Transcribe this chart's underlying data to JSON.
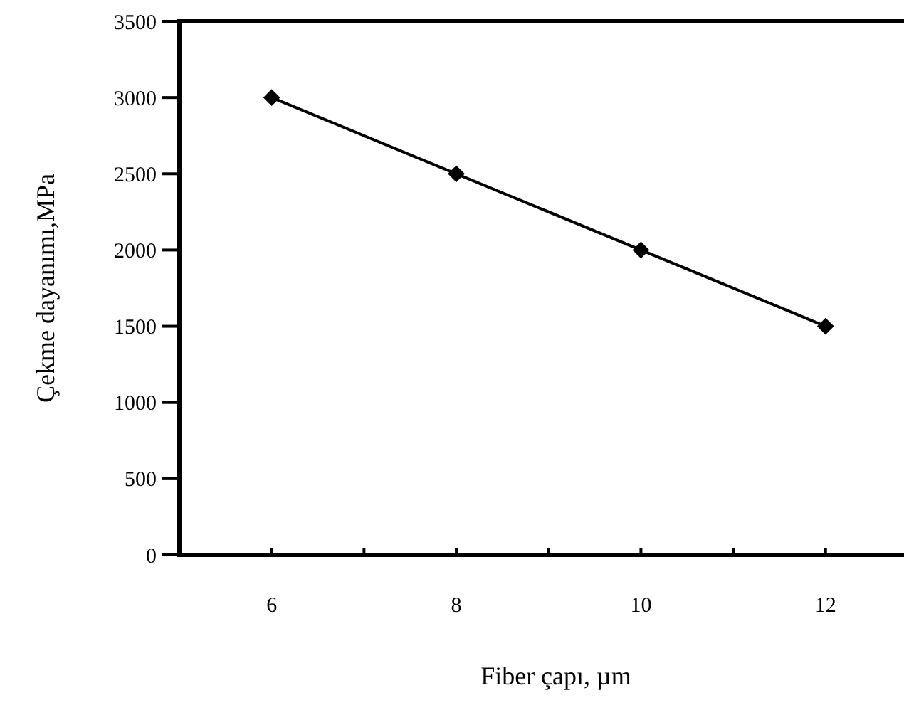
{
  "chart_data": {
    "type": "line",
    "xlabel": "Fiber çapı, µm",
    "ylabel": "Çekme dayanımı,MPa",
    "x": [
      6,
      8,
      10,
      12
    ],
    "series": [
      {
        "color": "#000000",
        "values": [
          3000,
          2500,
          2000,
          1500
        ]
      }
    ],
    "xlim": [
      5,
      13
    ],
    "xticks": [
      6,
      {
        "value": 7,
        "label": null
      },
      8,
      {
        "value": 9,
        "label": null
      },
      10,
      {
        "value": 11,
        "label": null
      },
      12
    ],
    "ylim": [
      0,
      3500
    ],
    "yticks": [
      0,
      500,
      1000,
      1500,
      2000,
      2500,
      3000,
      3500
    ],
    "grid": false,
    "marker": "diamond",
    "line_style": "solid"
  }
}
